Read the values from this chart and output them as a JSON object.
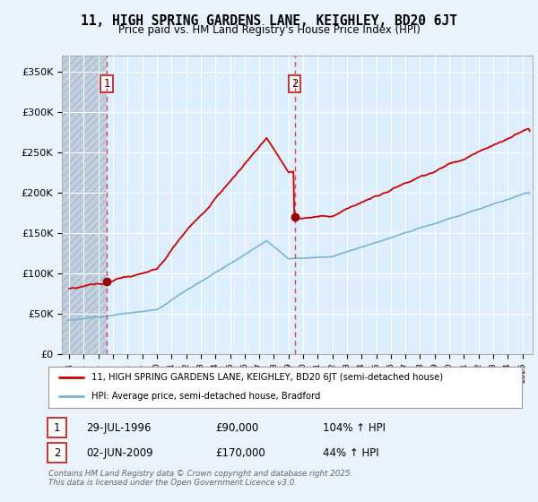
{
  "title": "11, HIGH SPRING GARDENS LANE, KEIGHLEY, BD20 6JT",
  "subtitle": "Price paid vs. HM Land Registry's House Price Index (HPI)",
  "sale1_date": 1996.57,
  "sale1_price": 90000,
  "sale1_label": "1",
  "sale2_date": 2009.42,
  "sale2_price": 170000,
  "sale2_label": "2",
  "hpi_line_color": "#7ab4d4",
  "price_line_color": "#cc0000",
  "sale_dot_color": "#990000",
  "dashed_line_color": "#dd4444",
  "legend_label1": "11, HIGH SPRING GARDENS LANE, KEIGHLEY, BD20 6JT (semi-detached house)",
  "legend_label2": "HPI: Average price, semi-detached house, Bradford",
  "footer": "Contains HM Land Registry data © Crown copyright and database right 2025.\nThis data is licensed under the Open Government Licence v3.0.",
  "ylim": [
    0,
    370000
  ],
  "xlim_start": 1993.5,
  "xlim_end": 2025.7,
  "background_color": "#eaf3fb",
  "plot_bg_color": "#ddeeff",
  "hatch_region_color": "#c8d8e8"
}
